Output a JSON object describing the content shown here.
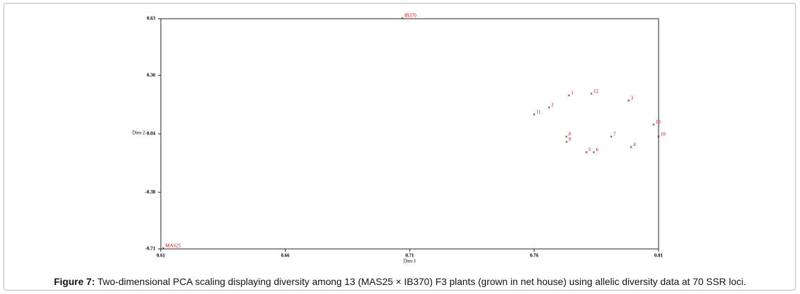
{
  "chart_data": {
    "type": "scatter",
    "x_label": "Dim-1",
    "y_label": "Dim-2",
    "xlim": [
      0.61,
      0.81
    ],
    "xticks": [
      0.61,
      0.66,
      0.71,
      0.76,
      0.81
    ],
    "ylim": [
      -0.71,
      0.63
    ],
    "yticks": [
      -0.71,
      -0.38,
      -0.04,
      {
        "value": 0.3,
        "label": "0.30"
      },
      0.63
    ],
    "series": [
      {
        "color": "#cc0000",
        "labels": [
          "IB370",
          "MAS25",
          "1",
          "2",
          "3",
          "4",
          "5",
          "6",
          "7",
          "8",
          "9",
          "10",
          "11",
          "12",
          "13"
        ],
        "x": [
          0.707,
          0.611,
          0.774,
          0.766,
          0.798,
          0.799,
          0.781,
          0.784,
          0.791,
          0.773,
          0.773,
          0.81,
          0.76,
          0.783,
          0.808
        ],
        "values": [
          0.63,
          -0.71,
          0.18,
          0.11,
          0.15,
          -0.12,
          -0.15,
          -0.15,
          -0.06,
          -0.06,
          -0.09,
          -0.06,
          0.07,
          0.19,
          0.01
        ]
      }
    ]
  },
  "caption": {
    "label": "Figure 7:",
    "text": " Two-dimensional PCA scaling displaying diversity among 13 (MAS25 × IB370) F3 plants (grown in net house) using allelic diversity data at 70 SSR loci."
  }
}
